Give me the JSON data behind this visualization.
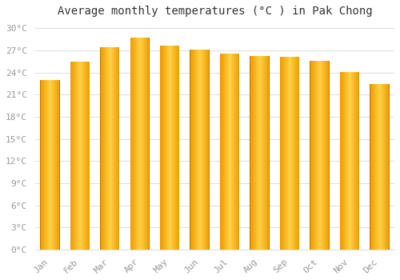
{
  "title": "Average monthly temperatures (°C ) in Pak Chong",
  "months": [
    "Jan",
    "Feb",
    "Mar",
    "Apr",
    "May",
    "Jun",
    "Jul",
    "Aug",
    "Sep",
    "Oct",
    "Nov",
    "Dec"
  ],
  "values": [
    23.0,
    25.5,
    27.5,
    28.7,
    27.7,
    27.1,
    26.6,
    26.3,
    26.2,
    25.6,
    24.1,
    22.5
  ],
  "bar_color_center": "#FFD04A",
  "bar_color_edge": "#F5A300",
  "bar_color_dark_edge": "#C87800",
  "background_color": "#FFFFFF",
  "grid_color": "#DDDDDD",
  "ylim": [
    0,
    31
  ],
  "yticks": [
    0,
    3,
    6,
    9,
    12,
    15,
    18,
    21,
    24,
    27,
    30
  ],
  "title_fontsize": 10,
  "tick_fontsize": 8,
  "title_color": "#333333",
  "tick_color": "#999999"
}
